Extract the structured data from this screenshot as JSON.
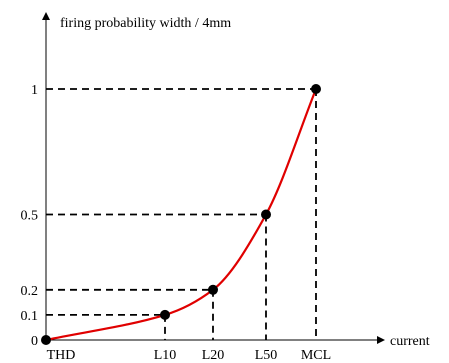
{
  "chart_data": {
    "type": "line",
    "ylabel": "firing probability width / 4mm",
    "xlabel": "current",
    "x_categories": [
      "THD",
      "L10",
      "L20",
      "L50",
      "MCL"
    ],
    "y_ticks": [
      {
        "label": "0",
        "value": 0
      },
      {
        "label": "0.1",
        "value": 0.1
      },
      {
        "label": "0.2",
        "value": 0.2
      },
      {
        "label": "0.5",
        "value": 0.5
      },
      {
        "label": "1",
        "value": 1
      }
    ],
    "points": [
      {
        "x": "THD",
        "y": 0
      },
      {
        "x": "L10",
        "y": 0.1
      },
      {
        "x": "L20",
        "y": 0.2
      },
      {
        "x": "L50",
        "y": 0.5
      },
      {
        "x": "MCL",
        "y": 1
      }
    ],
    "ylim": [
      0,
      1
    ],
    "curve_color": "#e00000",
    "marker_color": "#000000",
    "grid": false
  }
}
